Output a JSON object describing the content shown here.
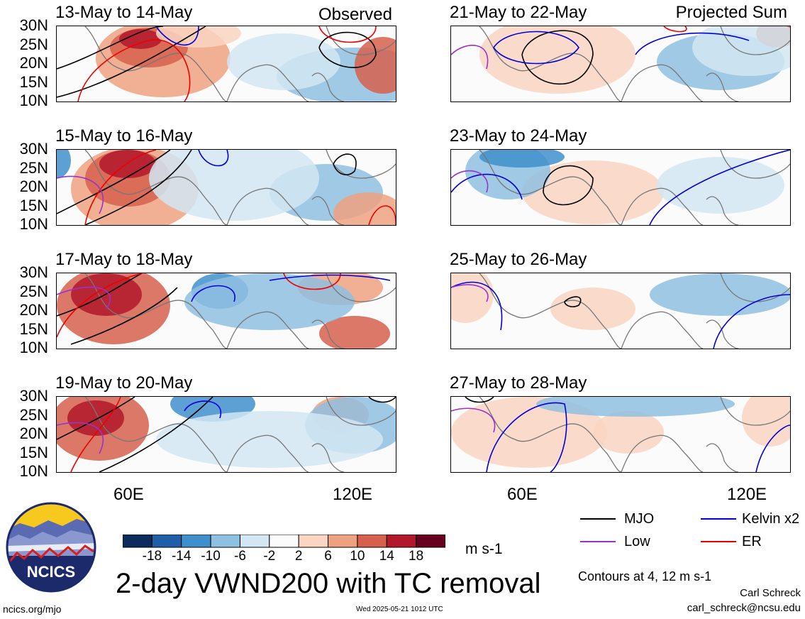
{
  "panels": {
    "left": [
      {
        "title": "13-May to 14-May",
        "tag": "Observed"
      },
      {
        "title": "15-May to 16-May",
        "tag": ""
      },
      {
        "title": "17-May to 18-May",
        "tag": ""
      },
      {
        "title": "19-May to 20-May",
        "tag": ""
      }
    ],
    "right": [
      {
        "title": "21-May to 22-May",
        "tag": "Projected Sum"
      },
      {
        "title": "23-May to 24-May",
        "tag": ""
      },
      {
        "title": "25-May to 26-May",
        "tag": ""
      },
      {
        "title": "27-May to 28-May",
        "tag": ""
      }
    ]
  },
  "lat_labels": [
    "30N",
    "25N",
    "20N",
    "15N",
    "10N"
  ],
  "lon_labels": [
    "60E",
    "120E"
  ],
  "colorbar": {
    "labels": [
      "-18",
      "-14",
      "-10",
      "-6",
      "-2",
      "2",
      "6",
      "10",
      "14",
      "18"
    ],
    "colors": [
      "#0b2c5c",
      "#1f5fa8",
      "#3f8fcd",
      "#8fc0e0",
      "#d2e6f3",
      "#fbfbfb",
      "#f9d5c2",
      "#eea181",
      "#d6604d",
      "#b2182b",
      "#67001f"
    ],
    "units": "m s-1"
  },
  "main_title": "2-day VWND200 with TC removal",
  "legend": [
    {
      "label": "MJO",
      "color": "#000000"
    },
    {
      "label": "Kelvin x2",
      "color": "#0000dd"
    },
    {
      "label": "Low",
      "color": "#9a32cd"
    },
    {
      "label": "ER",
      "color": "#ee0000"
    }
  ],
  "contours_note": "Contours at 4, 12 m s-1",
  "author_name": "Carl Schreck",
  "author_email": "carl_schreck@ncsu.edu",
  "site": "ncics.org/mjo",
  "timestamp": "Wed 2025-05-21 1012 UTC",
  "logo_text": "NCICS"
}
